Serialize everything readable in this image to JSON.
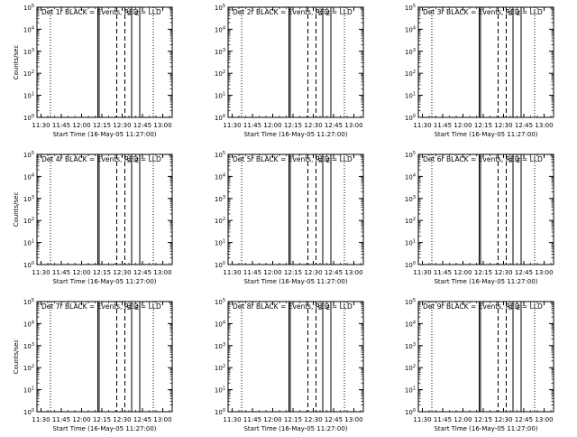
{
  "figure": {
    "colors": {
      "events": "#000000",
      "lld": "#ff0000",
      "axis": "#000000"
    }
  },
  "chart_data": [
    {
      "type": "line",
      "title": "Det 1r BLACK = Events, RED = LLD",
      "xlabel": "Start Time (16-May-05 11:27:00)",
      "ylabel": "Counts/sec",
      "yscale": "log",
      "ylim": [
        1,
        100000
      ],
      "xlim": [
        "11:27",
        "13:07"
      ],
      "x_ticks": [
        "11:30",
        "11:45",
        "12:00",
        "12:15",
        "12:30",
        "12:45",
        "13:00"
      ],
      "y_ticks": [
        "10^0",
        "10^1",
        "10^2",
        "10^3",
        "10^4",
        "10^5"
      ],
      "markers": {
        "dotted": [
          "11:37",
          "12:53"
        ],
        "solid": [
          "12:12",
          "12:13",
          "12:37",
          "12:43"
        ],
        "dashed": [
          "12:26",
          "12:32"
        ],
        "labels": [
          {
            "text": "S",
            "at": "12:35"
          },
          {
            "text": "E",
            "at": "12:41"
          }
        ]
      },
      "grid": false,
      "legend": "none",
      "series": []
    },
    {
      "type": "line",
      "title": "Det 2r BLACK = Events, RED = LLD",
      "xlabel": "Start Time (16-May-05 11:27:00)",
      "ylabel": "",
      "yscale": "log",
      "ylim": [
        1,
        100000
      ],
      "xlim": [
        "11:27",
        "13:07"
      ],
      "x_ticks": [
        "11:30",
        "11:45",
        "12:00",
        "12:15",
        "12:30",
        "12:45",
        "13:00"
      ],
      "y_ticks": [
        "10^0",
        "10^1",
        "10^2",
        "10^3",
        "10^4",
        "10^5"
      ],
      "markers": {
        "dotted": [
          "11:37",
          "12:53"
        ],
        "solid": [
          "12:12",
          "12:13",
          "12:37",
          "12:43"
        ],
        "dashed": [
          "12:26",
          "12:32"
        ],
        "labels": [
          {
            "text": "S",
            "at": "12:35"
          },
          {
            "text": "E",
            "at": "12:41"
          }
        ]
      },
      "grid": false,
      "legend": "none",
      "series": []
    },
    {
      "type": "line",
      "title": "Det 3r BLACK = Events, RED = LLD",
      "xlabel": "Start Time (16-May-05 11:27:00)",
      "ylabel": "",
      "yscale": "log",
      "ylim": [
        1,
        100000
      ],
      "xlim": [
        "11:27",
        "13:07"
      ],
      "x_ticks": [
        "11:30",
        "11:45",
        "12:00",
        "12:15",
        "12:30",
        "12:45",
        "13:00"
      ],
      "y_ticks": [
        "10^0",
        "10^1",
        "10^2",
        "10^3",
        "10^4",
        "10^5"
      ],
      "markers": {
        "dotted": [
          "11:37",
          "12:53"
        ],
        "solid": [
          "12:12",
          "12:13",
          "12:37",
          "12:43"
        ],
        "dashed": [
          "12:26",
          "12:32"
        ],
        "labels": [
          {
            "text": "S",
            "at": "12:35"
          },
          {
            "text": "E",
            "at": "12:41"
          }
        ]
      },
      "grid": false,
      "legend": "none",
      "series": []
    },
    {
      "type": "line",
      "title": "Det 4r BLACK = Events, RED = LLD",
      "xlabel": "Start Time (16-May-05 11:27:00)",
      "ylabel": "Counts/sec",
      "yscale": "log",
      "ylim": [
        1,
        100000
      ],
      "xlim": [
        "11:27",
        "13:07"
      ],
      "x_ticks": [
        "11:30",
        "11:45",
        "12:00",
        "12:15",
        "12:30",
        "12:45",
        "13:00"
      ],
      "y_ticks": [
        "10^0",
        "10^1",
        "10^2",
        "10^3",
        "10^4",
        "10^5"
      ],
      "markers": {
        "dotted": [
          "11:37",
          "12:53"
        ],
        "solid": [
          "12:12",
          "12:13",
          "12:37",
          "12:43"
        ],
        "dashed": [
          "12:26",
          "12:32"
        ],
        "labels": [
          {
            "text": "S",
            "at": "12:35"
          },
          {
            "text": "E",
            "at": "12:41"
          }
        ]
      },
      "grid": false,
      "legend": "none",
      "series": []
    },
    {
      "type": "line",
      "title": "Det 5r BLACK = Events, RED = LLD",
      "xlabel": "Start Time (16-May-05 11:27:00)",
      "ylabel": "",
      "yscale": "log",
      "ylim": [
        1,
        100000
      ],
      "xlim": [
        "11:27",
        "13:07"
      ],
      "x_ticks": [
        "11:30",
        "11:45",
        "12:00",
        "12:15",
        "12:30",
        "12:45",
        "13:00"
      ],
      "y_ticks": [
        "10^0",
        "10^1",
        "10^2",
        "10^3",
        "10^4",
        "10^5"
      ],
      "markers": {
        "dotted": [
          "11:37",
          "12:53"
        ],
        "solid": [
          "12:12",
          "12:13",
          "12:37",
          "12:43"
        ],
        "dashed": [
          "12:26",
          "12:32"
        ],
        "labels": [
          {
            "text": "S",
            "at": "12:35"
          },
          {
            "text": "E",
            "at": "12:41"
          }
        ]
      },
      "grid": false,
      "legend": "none",
      "series": []
    },
    {
      "type": "line",
      "title": "Det 6r BLACK = Events, RED = LLD",
      "xlabel": "Start Time (16-May-05 11:27:00)",
      "ylabel": "",
      "yscale": "log",
      "ylim": [
        1,
        100000
      ],
      "xlim": [
        "11:27",
        "13:07"
      ],
      "x_ticks": [
        "11:30",
        "11:45",
        "12:00",
        "12:15",
        "12:30",
        "12:45",
        "13:00"
      ],
      "y_ticks": [
        "10^0",
        "10^1",
        "10^2",
        "10^3",
        "10^4",
        "10^5"
      ],
      "markers": {
        "dotted": [
          "11:37",
          "12:53"
        ],
        "solid": [
          "12:12",
          "12:13",
          "12:37",
          "12:43"
        ],
        "dashed": [
          "12:26",
          "12:32"
        ],
        "labels": [
          {
            "text": "S",
            "at": "12:35"
          },
          {
            "text": "E",
            "at": "12:41"
          }
        ]
      },
      "grid": false,
      "legend": "none",
      "series": []
    },
    {
      "type": "line",
      "title": "Det 7r BLACK = Events, RED = LLD",
      "xlabel": "Start Time (16-May-05 11:27:00)",
      "ylabel": "Counts/sec",
      "yscale": "log",
      "ylim": [
        1,
        100000
      ],
      "xlim": [
        "11:27",
        "13:07"
      ],
      "x_ticks": [
        "11:30",
        "11:45",
        "12:00",
        "12:15",
        "12:30",
        "12:45",
        "13:00"
      ],
      "y_ticks": [
        "10^0",
        "10^1",
        "10^2",
        "10^3",
        "10^4",
        "10^5"
      ],
      "markers": {
        "dotted": [
          "11:37",
          "12:53"
        ],
        "solid": [
          "12:12",
          "12:13",
          "12:37",
          "12:43"
        ],
        "dashed": [
          "12:26",
          "12:32"
        ],
        "labels": [
          {
            "text": "S",
            "at": "12:35"
          },
          {
            "text": "E",
            "at": "12:41"
          }
        ]
      },
      "grid": false,
      "legend": "none",
      "series": []
    },
    {
      "type": "line",
      "title": "Det 8r BLACK = Events, RED = LLD",
      "xlabel": "Start Time (16-May-05 11:27:00)",
      "ylabel": "",
      "yscale": "log",
      "ylim": [
        1,
        100000
      ],
      "xlim": [
        "11:27",
        "13:07"
      ],
      "x_ticks": [
        "11:30",
        "11:45",
        "12:00",
        "12:15",
        "12:30",
        "12:45",
        "13:00"
      ],
      "y_ticks": [
        "10^0",
        "10^1",
        "10^2",
        "10^3",
        "10^4",
        "10^5"
      ],
      "markers": {
        "dotted": [
          "11:37",
          "12:53"
        ],
        "solid": [
          "12:12",
          "12:13",
          "12:37",
          "12:43"
        ],
        "dashed": [
          "12:26",
          "12:32"
        ],
        "labels": [
          {
            "text": "S",
            "at": "12:35"
          },
          {
            "text": "E",
            "at": "12:41"
          }
        ]
      },
      "grid": false,
      "legend": "none",
      "series": []
    },
    {
      "type": "line",
      "title": "Det 9r BLACK = Events, RED = LLD",
      "xlabel": "Start Time (16-May-05 11:27:00)",
      "ylabel": "",
      "yscale": "log",
      "ylim": [
        1,
        100000
      ],
      "xlim": [
        "11:27",
        "13:07"
      ],
      "x_ticks": [
        "11:30",
        "11:45",
        "12:00",
        "12:15",
        "12:30",
        "12:45",
        "13:00"
      ],
      "y_ticks": [
        "10^0",
        "10^1",
        "10^2",
        "10^3",
        "10^4",
        "10^5"
      ],
      "markers": {
        "dotted": [
          "11:37",
          "12:53"
        ],
        "solid": [
          "12:12",
          "12:13",
          "12:37",
          "12:43"
        ],
        "dashed": [
          "12:26",
          "12:32"
        ],
        "labels": [
          {
            "text": "S",
            "at": "12:35"
          },
          {
            "text": "E",
            "at": "12:41"
          }
        ]
      },
      "grid": false,
      "legend": "none",
      "series": []
    }
  ]
}
